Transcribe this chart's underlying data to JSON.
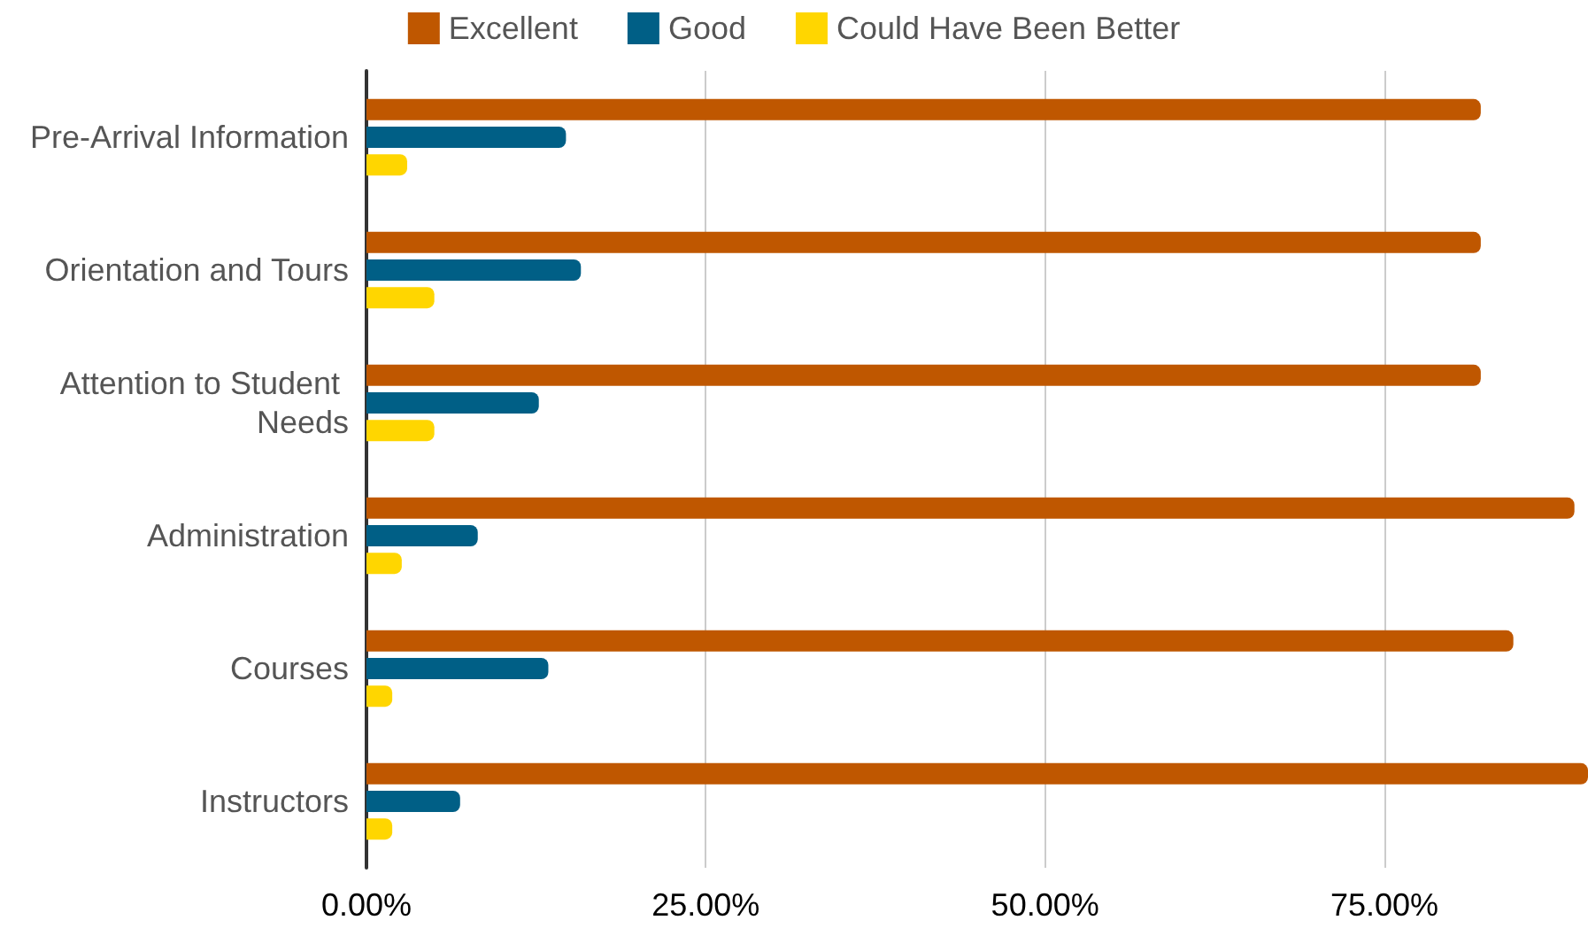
{
  "chart_data": {
    "type": "bar",
    "orientation": "horizontal",
    "categories": [
      "Pre-Arrival Information",
      "Orientation and Tours",
      "Attention to Student Needs",
      "Administration",
      "Courses",
      "Instructors"
    ],
    "series": [
      {
        "name": "Excellent",
        "color": "#bf5700",
        "values": [
          82.1,
          82.1,
          82.1,
          89.0,
          84.5,
          90
        ]
      },
      {
        "name": "Good",
        "color": "#005f86",
        "values": [
          14.7,
          15.8,
          12.7,
          8.2,
          13.4,
          6.9
        ]
      },
      {
        "name": "Could Have Been Better",
        "color": "#ffd600",
        "values": [
          3.0,
          5.0,
          5.0,
          2.6,
          1.9,
          1.9
        ]
      }
    ],
    "xlim": [
      0,
      90
    ],
    "xticks": [
      {
        "value": 0,
        "label": "0.00%"
      },
      {
        "value": 25,
        "label": "25.00%"
      },
      {
        "value": 50,
        "label": "50.00%"
      },
      {
        "value": 75,
        "label": "75.00%"
      }
    ],
    "grid": "x",
    "legend": "top"
  }
}
